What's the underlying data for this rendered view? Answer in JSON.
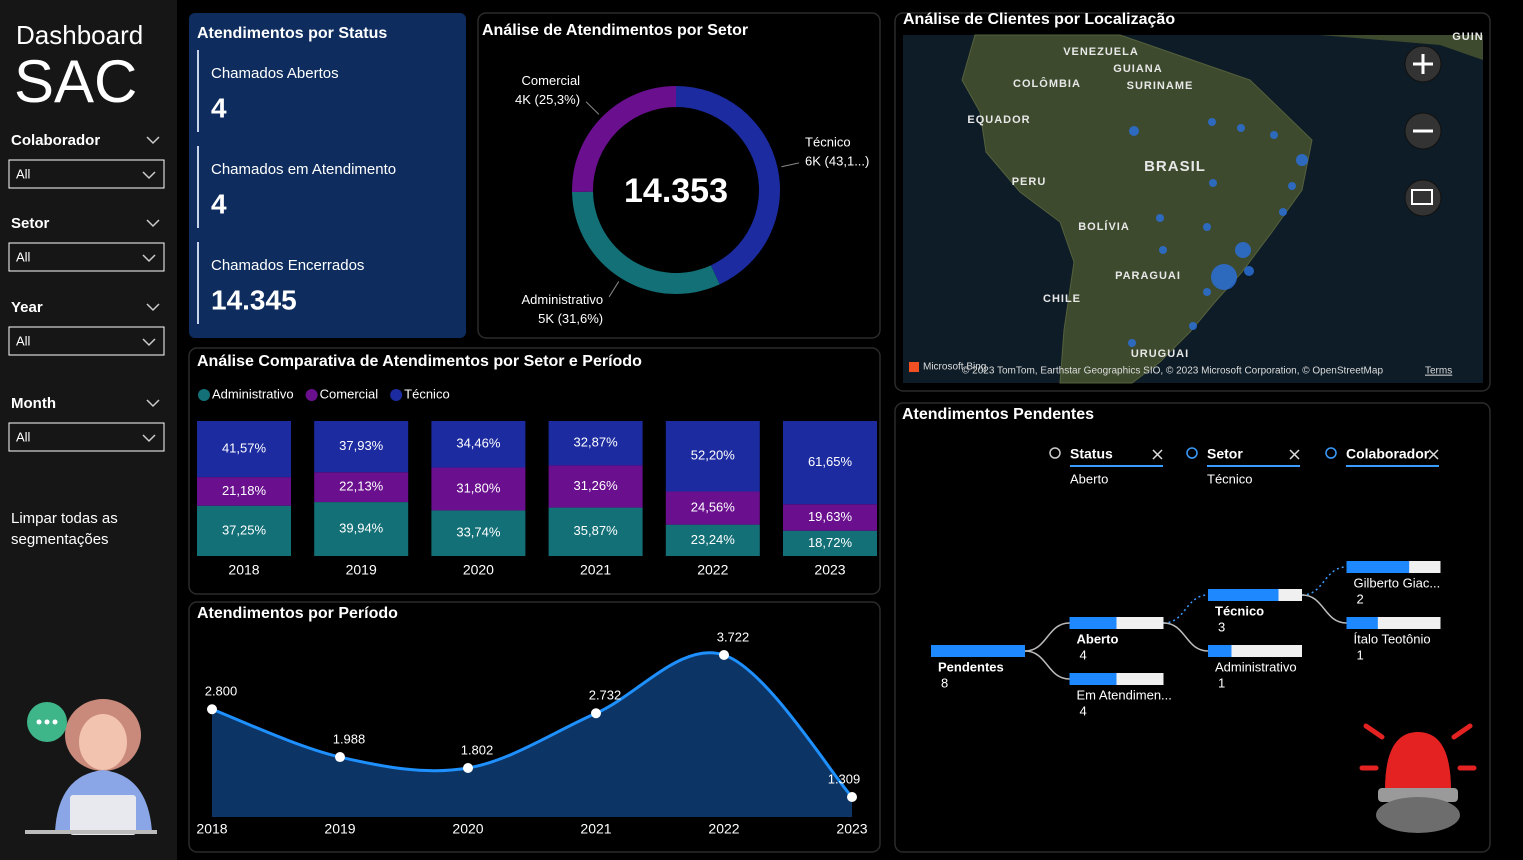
{
  "sidebar": {
    "title": "Dashboard",
    "subtitle": "SAC",
    "slicers": [
      {
        "label": "Colaborador",
        "value": "All"
      },
      {
        "label": "Setor",
        "value": "All"
      },
      {
        "label": "Year",
        "value": "All"
      },
      {
        "label": "Month",
        "value": "All"
      }
    ],
    "clear_button": "Limpar todas as segmentações"
  },
  "status_card": {
    "title": "Atendimentos por Status",
    "labels": [
      "Chamados Abertos",
      "Chamados em Atendimento",
      "Chamados Encerrados"
    ],
    "values": [
      4,
      4,
      14345
    ],
    "value_labels": [
      "4",
      "4",
      "14.345"
    ]
  },
  "chart_data": [
    {
      "type": "donut",
      "title": "Análise de Atendimentos por Setor",
      "categories": [
        "Técnico",
        "Administrativo",
        "Comercial"
      ],
      "values": [
        43.1,
        31.6,
        25.3
      ],
      "value_labels": [
        "6K (43,1...)",
        "5K (31,6%)",
        "4K (25,3%)"
      ],
      "colors": [
        "#1c2ba0",
        "#137077",
        "#6a0f8e"
      ],
      "center_value": 14353,
      "center_value_label": "14.353"
    },
    {
      "type": "stacked_bar",
      "title": "Análise Comparativa de Atendimentos por Setor e Período",
      "categories": [
        "2018",
        "2019",
        "2020",
        "2021",
        "2022",
        "2023"
      ],
      "series": [
        {
          "name": "Administrativo",
          "color": "#137077",
          "values": [
            37.25,
            39.94,
            33.74,
            35.87,
            23.24,
            18.72
          ],
          "value_labels": [
            "37,25%",
            "39,94%",
            "33,74%",
            "35,87%",
            "23,24%",
            "18,72%"
          ]
        },
        {
          "name": "Comercial",
          "color": "#6a0f8e",
          "values": [
            21.18,
            22.13,
            31.8,
            31.26,
            24.56,
            19.63
          ],
          "value_labels": [
            "21,18%",
            "22,13%",
            "31,80%",
            "31,26%",
            "24,56%",
            "19,63%"
          ]
        },
        {
          "name": "Técnico",
          "color": "#1c2ba0",
          "values": [
            41.57,
            37.93,
            34.46,
            32.87,
            52.2,
            61.65
          ],
          "value_labels": [
            "41,57%",
            "37,93%",
            "34,46%",
            "32,87%",
            "52,20%",
            "61,65%"
          ]
        }
      ]
    },
    {
      "type": "area",
      "title": "Atendimentos por Período",
      "categories": [
        "2018",
        "2019",
        "2020",
        "2021",
        "2022",
        "2023"
      ],
      "values": [
        2800,
        1988,
        1802,
        2732,
        3722,
        1309
      ],
      "value_labels": [
        "2.800",
        "1.988",
        "1.802",
        "2.732",
        "3.722",
        "1.309"
      ],
      "color": "#1e90ff",
      "fill": "#0c3566"
    }
  ],
  "map": {
    "title": "Análise de Clientes por Localização",
    "place_labels": [
      "VENEZUELA",
      "GUIANA",
      "SURINAME",
      "COLÔMBIA",
      "EQUADOR",
      "PERU",
      "BRASIL",
      "BOLÍVIA",
      "PARAGUAI",
      "CHILE",
      "URUGUAI",
      "GUIN"
    ],
    "logo": "Microsoft Bing",
    "attribution": "© 2023 TomTom, Earthstar Geographics SIO, © 2023 Microsoft Corporation, © OpenStreetMap",
    "terms": "Terms"
  },
  "decomposition_tree": {
    "title": "Atendimentos Pendentes",
    "filters": [
      {
        "field": "Status",
        "value": "Aberto"
      },
      {
        "field": "Setor",
        "value": "Técnico"
      },
      {
        "field": "Colaborador"
      }
    ],
    "root": {
      "label": "Pendentes",
      "value": 8,
      "children": [
        {
          "label": "Aberto",
          "value": 4,
          "children": [
            {
              "label": "Técnico",
              "value": 3,
              "children": [
                {
                  "label": "Gilberto Giac...",
                  "value": 2
                },
                {
                  "label": "Ítalo Teotônio",
                  "value": 1
                }
              ]
            },
            {
              "label": "Administrativo",
              "value": 1
            }
          ]
        },
        {
          "label": "Em Atendimen...",
          "value": 4
        }
      ]
    }
  }
}
